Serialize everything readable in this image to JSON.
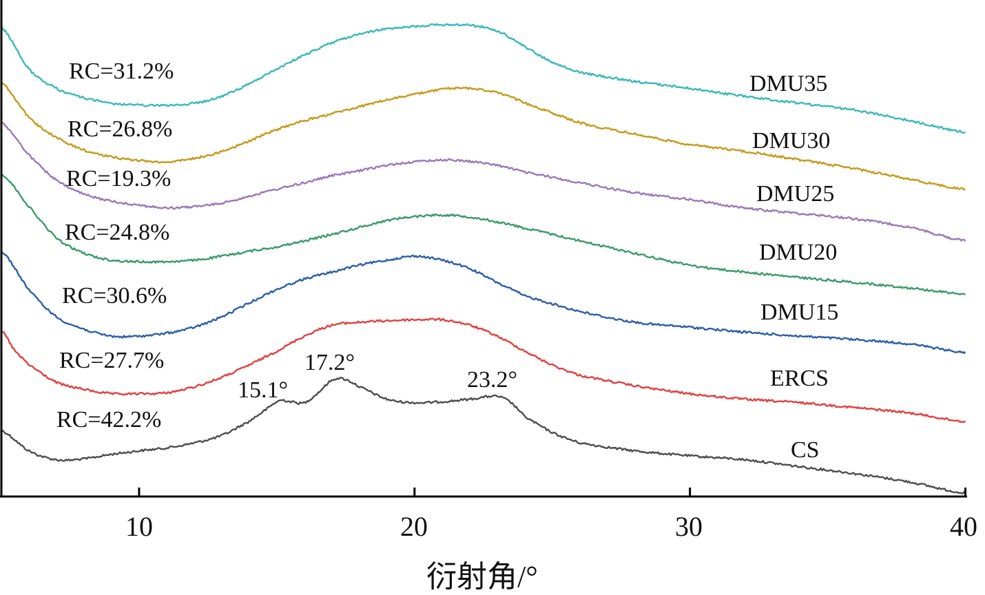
{
  "chart_data": {
    "type": "line",
    "title": "",
    "xlabel": "衍射角/°",
    "ylabel": "",
    "xlim": [
      5,
      40
    ],
    "ylim": [
      0,
      100
    ],
    "xticks": [
      10,
      20,
      30,
      40
    ],
    "xtick_labels": [
      "10",
      "20",
      "30",
      "40"
    ],
    "grid": false,
    "y_ticks_shown": false,
    "series": [
      {
        "name": "CS",
        "rc_label": "RC=42.2%",
        "color": "#4d4d4d",
        "x": [
          5,
          6,
          7,
          8,
          9,
          10,
          11,
          12,
          13,
          14,
          14.5,
          15.1,
          15.5,
          16,
          16.5,
          17,
          17.4,
          18,
          19,
          20,
          21,
          22,
          23,
          23.5,
          24,
          25,
          26,
          28,
          30,
          32,
          34,
          36,
          38,
          40
        ],
        "y": [
          13.3,
          9.2,
          7.4,
          7.6,
          8.5,
          9.2,
          9.8,
          10.8,
          12.3,
          15.1,
          17.1,
          19.3,
          19.1,
          18.9,
          20.9,
          23.4,
          23.7,
          22.1,
          19.6,
          18.9,
          19.1,
          19.6,
          20.2,
          18.9,
          16.1,
          12.9,
          10.8,
          9.2,
          8.2,
          7.4,
          6.0,
          4.6,
          2.9,
          0.7
        ]
      },
      {
        "name": "ERCS",
        "rc_label": "RC=27.7%",
        "color": "#e0403f",
        "x": [
          5,
          5.5,
          6,
          7,
          8,
          9,
          10,
          11,
          12,
          13,
          14,
          15,
          16,
          17,
          18,
          19,
          20,
          21,
          22,
          23,
          24,
          25,
          26,
          28,
          30,
          32,
          34,
          36,
          38,
          40
        ],
        "y": [
          33.4,
          29.3,
          26.5,
          23.0,
          21.6,
          20.7,
          20.7,
          20.9,
          22.1,
          24.0,
          26.5,
          29.3,
          32.3,
          34.5,
          35.1,
          35.4,
          35.6,
          35.6,
          34.5,
          32.3,
          29.3,
          26.5,
          24.4,
          22.3,
          20.7,
          19.6,
          18.9,
          17.9,
          16.8,
          15.1
        ]
      },
      {
        "name": "DMU15",
        "rc_label": "RC=30.6%",
        "color": "#2b5ea8",
        "x": [
          5,
          6,
          7,
          8,
          9,
          10,
          11,
          12,
          13,
          14,
          15,
          16,
          17,
          18,
          19,
          20,
          21,
          22,
          23,
          24,
          26,
          28,
          30,
          32,
          34,
          36,
          38,
          40
        ],
        "y": [
          49.4,
          41.7,
          36.2,
          33.7,
          32.3,
          32.3,
          32.9,
          34.1,
          36.2,
          39.0,
          41.7,
          43.8,
          45.2,
          46.6,
          47.6,
          48.4,
          47.6,
          45.9,
          43.1,
          40.4,
          37.3,
          35.1,
          34.1,
          33.1,
          32.3,
          31.6,
          30.7,
          29.0
        ]
      },
      {
        "name": "DMU20",
        "rc_label": "RC=24.8%",
        "color": "#3a9a6a",
        "x": [
          5,
          6,
          7,
          8,
          9,
          10,
          11,
          12,
          13,
          14,
          15,
          16,
          17,
          18,
          19,
          20,
          21,
          22,
          23,
          24,
          26,
          28,
          30,
          32,
          34,
          36,
          38,
          40
        ],
        "y": [
          65.0,
          58.4,
          52.1,
          49.0,
          47.6,
          47.3,
          47.3,
          47.6,
          48.4,
          49.4,
          50.3,
          51.5,
          52.8,
          54.2,
          55.6,
          56.4,
          56.7,
          56.3,
          55.3,
          54.0,
          51.5,
          49.0,
          46.6,
          45.2,
          44.1,
          43.1,
          42.0,
          40.8
        ]
      },
      {
        "name": "DMU25",
        "rc_label": "RC=19.3%",
        "color": "#9a78b8",
        "x": [
          5,
          6,
          7,
          8,
          9,
          10,
          11,
          12,
          13,
          14,
          15,
          16,
          17,
          18,
          19,
          20,
          21,
          22,
          23,
          24,
          26,
          28,
          30,
          32,
          34,
          36,
          38,
          40
        ],
        "y": [
          75.3,
          68.8,
          63.7,
          60.9,
          59.5,
          58.7,
          58.1,
          58.4,
          59.1,
          60.5,
          61.9,
          63.2,
          64.6,
          65.6,
          66.7,
          67.4,
          67.8,
          67.5,
          66.7,
          65.3,
          63.2,
          61.2,
          59.8,
          58.1,
          57.0,
          55.9,
          54.2,
          51.5
        ]
      },
      {
        "name": "DMU30",
        "rc_label": "RC=26.8%",
        "color": "#c49a1a",
        "x": [
          5,
          6,
          7,
          8,
          9,
          10,
          11,
          12,
          13,
          14,
          15,
          16,
          17,
          18,
          19,
          20,
          21,
          22,
          23,
          24,
          26,
          28,
          30,
          32,
          34,
          36,
          38,
          40
        ],
        "y": [
          83.4,
          76.4,
          72.3,
          69.8,
          68.4,
          67.7,
          67.4,
          68.1,
          69.5,
          71.6,
          73.9,
          75.7,
          77.1,
          78.5,
          79.9,
          81.0,
          82.0,
          82.2,
          81.3,
          79.2,
          75.3,
          73.0,
          70.9,
          69.5,
          67.8,
          66.0,
          63.9,
          61.9
        ]
      },
      {
        "name": "DMU35",
        "rc_label": "RC=31.2%",
        "color": "#3ab8b8",
        "x": [
          5,
          6,
          7,
          8,
          9,
          10,
          11,
          12,
          13,
          14,
          15,
          16,
          17,
          18,
          19,
          20,
          21,
          22,
          23,
          24,
          25,
          26,
          28,
          30,
          32,
          34,
          36,
          38,
          40
        ],
        "y": [
          94.5,
          86.1,
          82.2,
          80.3,
          79.2,
          78.8,
          78.8,
          79.2,
          80.6,
          83.1,
          86.1,
          88.9,
          91.4,
          93.1,
          94.2,
          94.7,
          95.0,
          94.9,
          93.8,
          90.6,
          87.5,
          85.4,
          83.6,
          82.2,
          80.6,
          79.2,
          77.8,
          75.7,
          73.4
        ]
      }
    ],
    "annotations": [
      "15.1°",
      "17.2°",
      "23.2°"
    ]
  }
}
